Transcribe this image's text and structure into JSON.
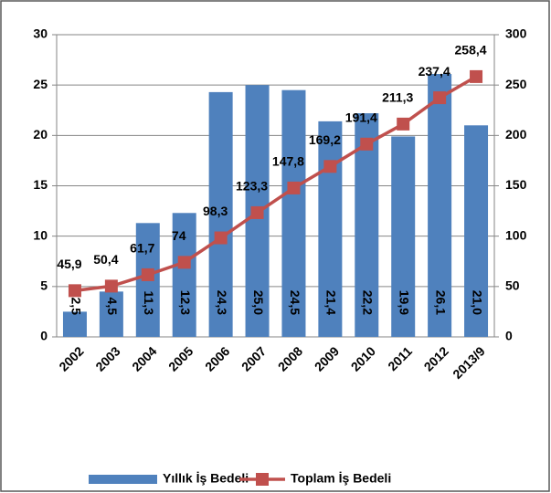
{
  "chart_data": {
    "type": "bar",
    "categories": [
      "2002",
      "2003",
      "2004",
      "2005",
      "2006",
      "2007",
      "2008",
      "2009",
      "2010",
      "2011",
      "2012",
      "2013/9"
    ],
    "series": [
      {
        "name": "Yıllık İş Bedeli",
        "color": "#4f81bd",
        "type": "bar",
        "values": [
          2.5,
          4.5,
          11.3,
          12.3,
          24.3,
          25.0,
          24.5,
          21.4,
          22.2,
          19.9,
          26.1,
          21.0
        ],
        "value_labels": [
          "2,5",
          "4,5",
          "11,3",
          "12,3",
          "24,3",
          "25,0",
          "24,5",
          "21,4",
          "22,2",
          "19,9",
          "26,1",
          "21,0"
        ]
      },
      {
        "name": "Toplam İş Bedeli",
        "color": "#c0504d",
        "type": "line",
        "axis": "y2",
        "values": [
          45.9,
          50.4,
          61.7,
          74,
          98.3,
          123.3,
          147.8,
          169.2,
          191.4,
          211.3,
          237.4,
          258.4
        ],
        "value_labels": [
          "45,9",
          "50,4",
          "61,7",
          "74",
          "98,3",
          "123,3",
          "147,8",
          "169,2",
          "191,4",
          "211,3",
          "237,4",
          "258,4"
        ]
      }
    ],
    "ylim": [
      0,
      30
    ],
    "yticks": [
      0,
      5,
      10,
      15,
      20,
      25,
      30
    ],
    "y2lim": [
      0,
      300
    ],
    "y2ticks": [
      0,
      50,
      100,
      150,
      200,
      250,
      300
    ],
    "grid": true,
    "legend": "bottom"
  }
}
